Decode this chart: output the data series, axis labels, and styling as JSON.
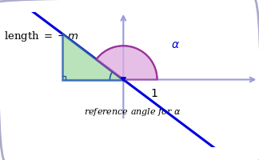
{
  "bg_color": "#ffffff",
  "border_color": "#aaaacc",
  "line_color": "#0000dd",
  "axis_color": "#9999dd",
  "triangle_fill": "#aaddaa",
  "triangle_edge": "#2255aa",
  "arc_fill": "#ddaadd",
  "arc_edge": "#993399",
  "label_length": "length $= -m$",
  "label_1": "1",
  "label_alpha": "$\\alpha$",
  "label_ref": "reference angle for $\\alpha$",
  "slope": -0.75,
  "fig_width": 3.24,
  "fig_height": 2.01,
  "dpi": 100
}
